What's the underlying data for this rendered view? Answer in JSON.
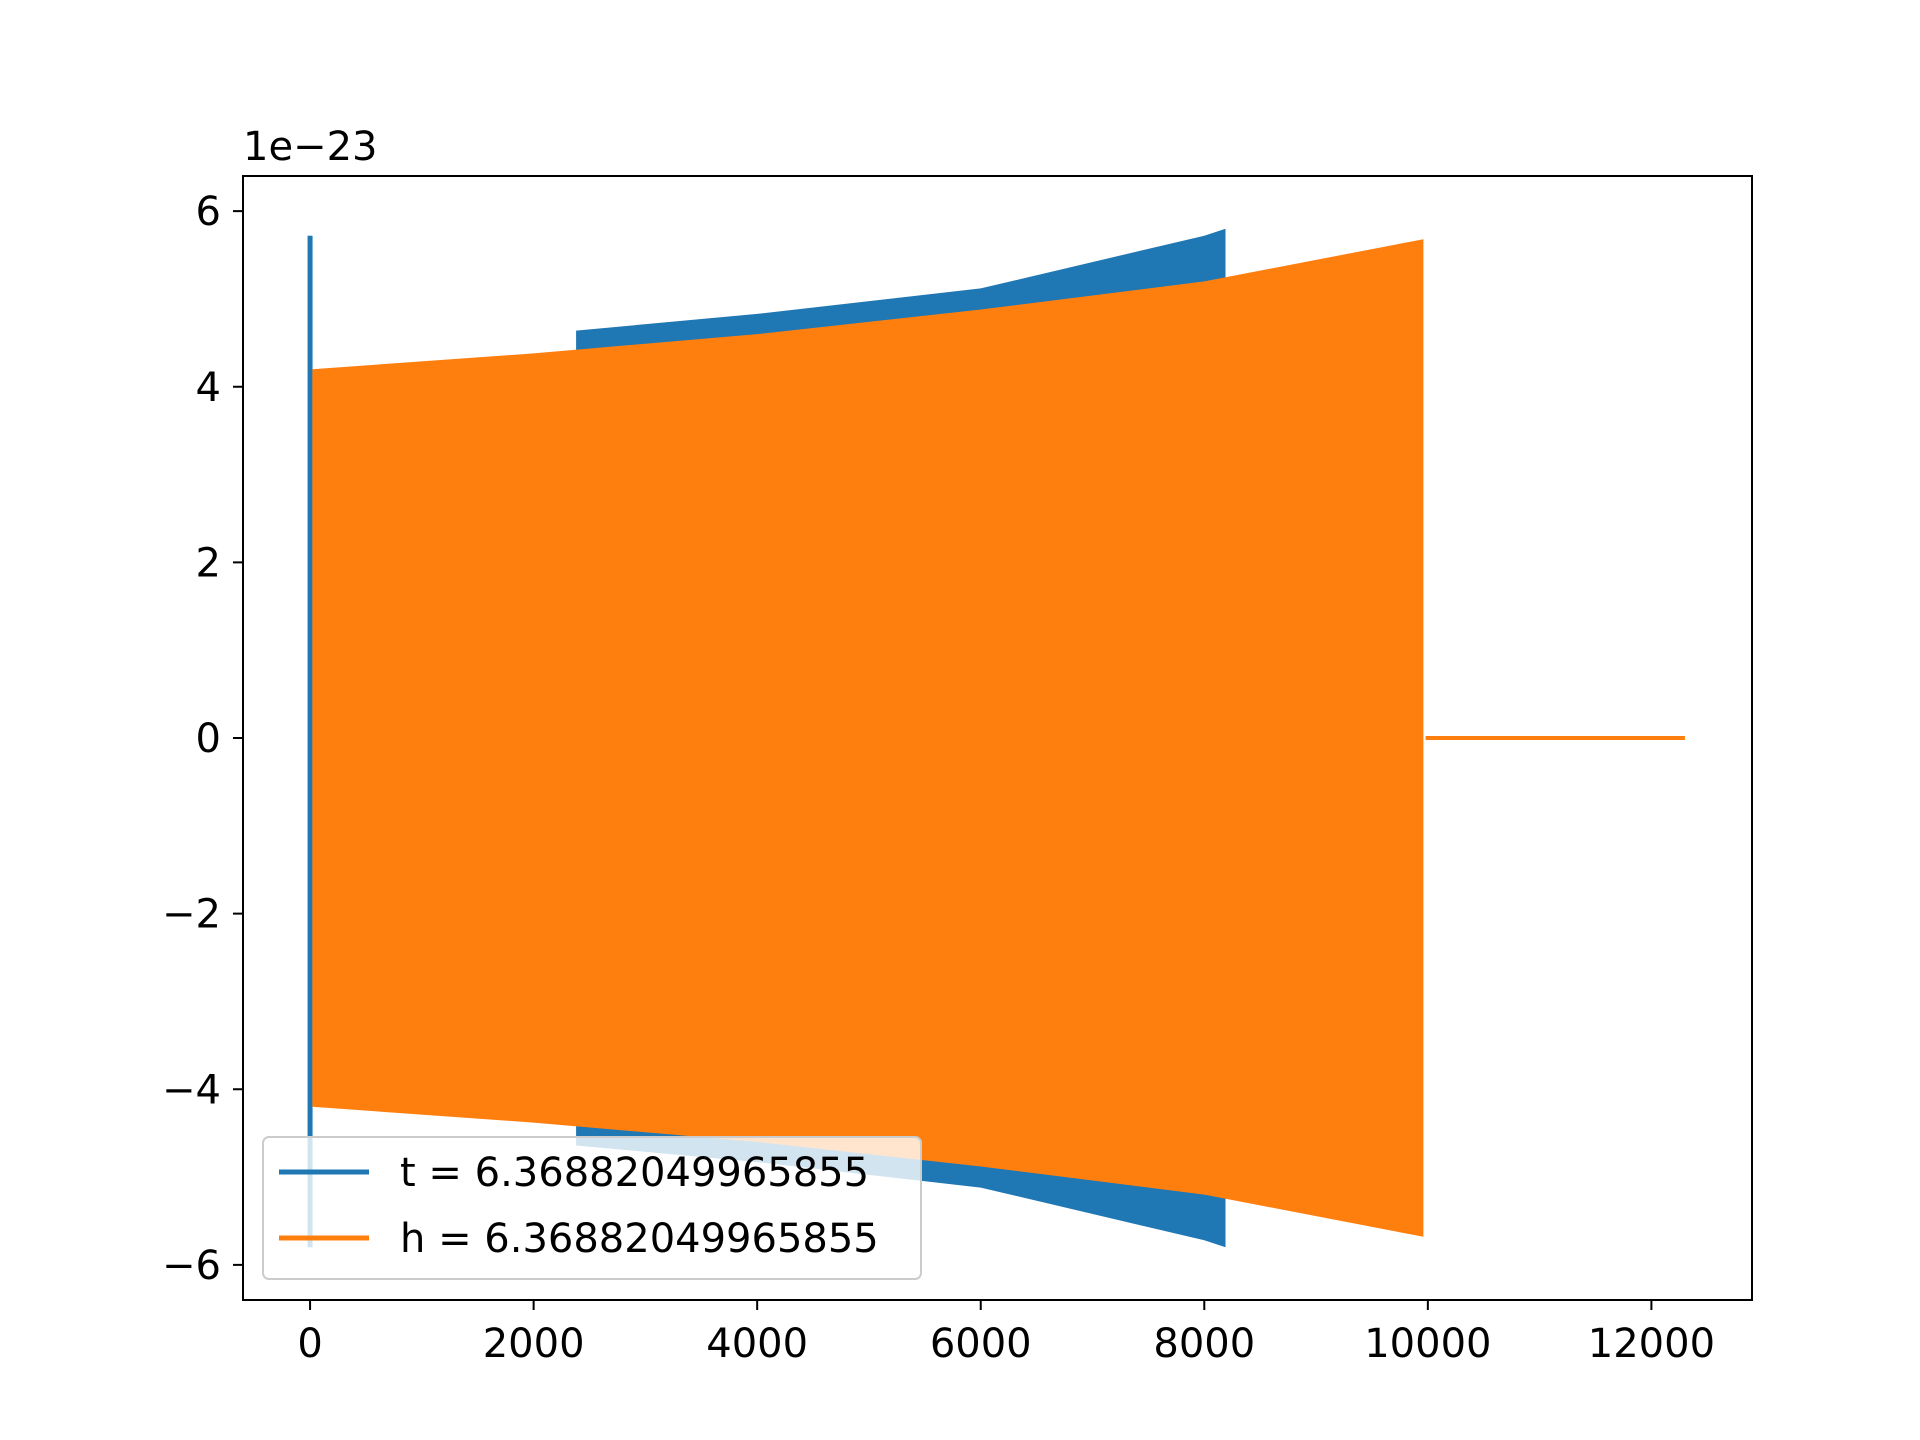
{
  "chart_data": {
    "type": "line",
    "title": "",
    "xlabel": "",
    "ylabel": "",
    "y_offset_text": "1e−23",
    "xlim": [
      -600,
      12900
    ],
    "ylim": [
      -6.4,
      6.4
    ],
    "xticks": [
      0,
      2000,
      4000,
      6000,
      8000,
      10000,
      12000
    ],
    "xtick_labels": [
      "0",
      "2000",
      "4000",
      "6000",
      "8000",
      "10000",
      "12000"
    ],
    "yticks": [
      -6,
      -4,
      -2,
      0,
      2,
      4,
      6
    ],
    "ytick_labels": [
      "−6",
      "−4",
      "−2",
      "0",
      "2",
      "4",
      "6"
    ],
    "grid": false,
    "legend_position": "lower-left",
    "series": [
      {
        "name": "t = 6.36882049965855",
        "color": "#1f77b4",
        "spike": {
          "x": 0,
          "upper": 5.72,
          "lower": -5.8
        },
        "envelope_x": [
          2380,
          4000,
          6000,
          8000,
          8190
        ],
        "envelope_upper": [
          4.64,
          4.83,
          5.12,
          5.72,
          5.8
        ],
        "envelope_lower": [
          -4.64,
          -4.83,
          -5.12,
          -5.72,
          -5.8
        ]
      },
      {
        "name": "h = 6.36882049965855",
        "color": "#ff7f0e",
        "envelope_x": [
          20,
          2000,
          4000,
          6000,
          8000,
          9960
        ],
        "envelope_upper": [
          4.2,
          4.38,
          4.6,
          4.88,
          5.2,
          5.68
        ],
        "envelope_lower": [
          -4.2,
          -4.38,
          -4.6,
          -4.88,
          -5.2,
          -5.68
        ],
        "flat_segment": {
          "x": [
            9980,
            12300
          ],
          "y": 0
        }
      }
    ]
  }
}
